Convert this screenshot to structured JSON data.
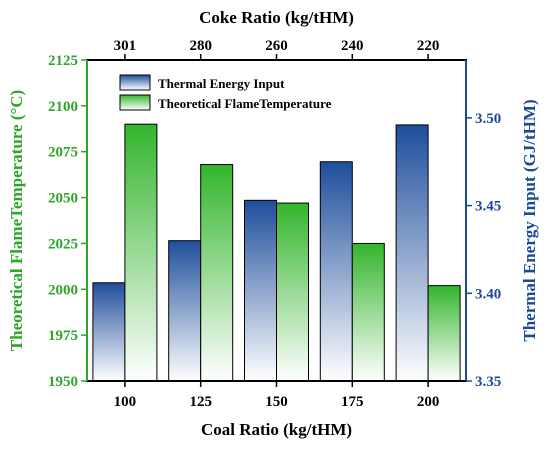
{
  "chart_data": {
    "type": "bar",
    "categories": [
      "100",
      "125",
      "150",
      "175",
      "200"
    ],
    "top_categories": [
      "301",
      "280",
      "260",
      "240",
      "220"
    ],
    "xlabel": "Coal Ratio (kg/tHM)",
    "top_xlabel": "Coke Ratio (kg/tHM)",
    "ylabel_left": "Theoretical FlameTemperature (°C)",
    "ylabel_right": "Thermal Energy Input (GJ/tHM)",
    "ylim_left": [
      1950,
      2125
    ],
    "yticks_left": [
      1950,
      1975,
      2000,
      2025,
      2050,
      2075,
      2100,
      2125
    ],
    "ylim_right": [
      3.35,
      3.533
    ],
    "yticks_right": [
      "3.35",
      "3.40",
      "3.45",
      "3.50"
    ],
    "legend_position": "top-left",
    "series": [
      {
        "name": "Thermal Energy Input",
        "axis": "right",
        "color": "#1f4e9c",
        "values": [
          3.406,
          3.43,
          3.453,
          3.475,
          3.496
        ]
      },
      {
        "name": "Theoretical FlameTemperature",
        "axis": "left",
        "color": "#33b52c",
        "values": [
          2090,
          2068,
          2047,
          2025,
          2002
        ]
      }
    ],
    "colors": {
      "left_axis": "#2fa52a",
      "right_axis": "#1a4a96",
      "frame": "#000000"
    }
  }
}
